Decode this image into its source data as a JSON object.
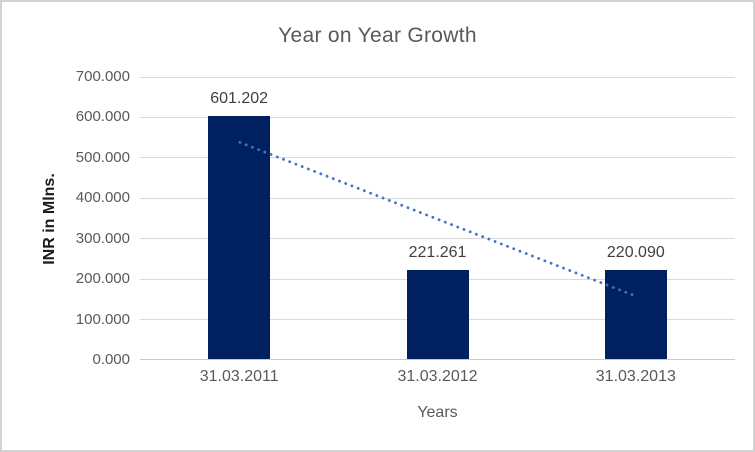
{
  "window": {
    "background_color": "#ffffff",
    "border_color": "#d2d2d2"
  },
  "chart_data": {
    "type": "bar",
    "title": "Year on Year Growth",
    "categories": [
      "31.03.2011",
      "31.03.2012",
      "31.03.2013"
    ],
    "values": [
      601.202,
      221.261,
      220.09
    ],
    "data_labels": [
      "601.202",
      "221.261",
      "220.090"
    ],
    "xlabel": "Years",
    "ylabel": "INR in Mlns.",
    "ylim": [
      0,
      700
    ],
    "ytick_step": 100,
    "ytick_labels": [
      "0.000",
      "100.000",
      "200.000",
      "300.000",
      "400.000",
      "500.000",
      "600.000",
      "700.000"
    ],
    "grid": true,
    "legend": "none",
    "colors": {
      "bar": "#002060",
      "trendline": "#4472C4",
      "title_text": "#595959",
      "tick_text": "#595959",
      "data_label_text": "#404040",
      "axis_title_text": "#1a1a1a",
      "gridline": "#d9d9d9"
    },
    "trendline": {
      "type": "linear",
      "style": "dotted",
      "start_value": 537.7,
      "end_value": 156.6
    }
  }
}
